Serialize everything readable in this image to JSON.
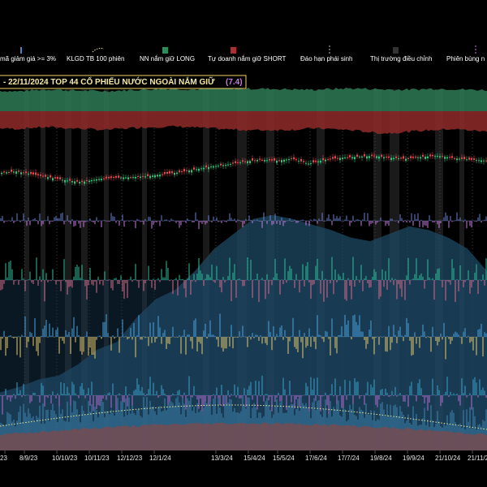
{
  "chart_data": {
    "type": "composite",
    "title": "- 22/11/2024  TOP 44  CỔ PHIẾU NƯỚC NGOÀI NẮM GIỮ",
    "title_value": "(7.4)",
    "legend": [
      {
        "label": "mã giảm giá >= 3%",
        "color": "#6fa8ff",
        "marker": "tick"
      },
      {
        "label": "KLGD TB 100 phiên",
        "color": "#e8e49a",
        "marker": "dotted"
      },
      {
        "label": "NN nắm giữ LONG",
        "color": "#2f8a5c",
        "marker": "box"
      },
      {
        "label": "Tự doanh nắm giữ SHORT",
        "color": "#a83232",
        "marker": "box"
      },
      {
        "label": "Đáo hạn phái sinh",
        "color": "#bbbbbb",
        "marker": "dashed"
      },
      {
        "label": "Thị trường điều chỉnh",
        "color": "#333333",
        "marker": "box"
      },
      {
        "label": "Phiên bùng n",
        "color": "#c77ddf",
        "marker": "dashed"
      }
    ],
    "x_ticks": [
      "23",
      "8/9/23",
      "10/10/23",
      "10/11/23",
      "12/12/23",
      "12/1/24",
      "13/3/24",
      "15/4/24",
      "15/5/24",
      "17/6/24",
      "17/7/24",
      "19/8/24",
      "19/9/24",
      "21/10/24",
      "21/11/2"
    ],
    "x_tick_pos": [
      0,
      24,
      64,
      104,
      144,
      184,
      260,
      300,
      336,
      376,
      416,
      456,
      496,
      536,
      576
    ],
    "correction_zones": [
      [
        30,
        36
      ],
      [
        50,
        56
      ],
      [
        80,
        88
      ],
      [
        100,
        108
      ],
      [
        128,
        134
      ],
      [
        175,
        181
      ],
      [
        250,
        258
      ],
      [
        292,
        304
      ],
      [
        328,
        338
      ],
      [
        390,
        400
      ],
      [
        460,
        470
      ],
      [
        480,
        492
      ],
      [
        536,
        546
      ],
      [
        566,
        572
      ]
    ],
    "series": [
      {
        "name": "NN nắm giữ LONG",
        "values": [
          60,
          58,
          62,
          64,
          61,
          60,
          59,
          61,
          63,
          65,
          66,
          64,
          65,
          67,
          66,
          66,
          65,
          64,
          63,
          65,
          67,
          66,
          64,
          63,
          64,
          66,
          65,
          63,
          62
        ]
      },
      {
        "name": "Tự doanh nắm giữ SHORT",
        "values": [
          -50,
          -52,
          -48,
          -47,
          -50,
          -52,
          -55,
          -51,
          -48,
          -46,
          -45,
          -47,
          -50,
          -53,
          -55,
          -56,
          -55,
          -54,
          -50,
          -52,
          -55,
          -60,
          -65,
          -62,
          -58,
          -55,
          -52,
          -56,
          -60
        ]
      },
      {
        "name": "price",
        "values": [
          45,
          48,
          42,
          36,
          30,
          26,
          32,
          35,
          36,
          38,
          42,
          46,
          52,
          58,
          62,
          68,
          72,
          70,
          74,
          64,
          72,
          76,
          78,
          80,
          76,
          74,
          78,
          80,
          75,
          72,
          70
        ]
      },
      {
        "name": "breadth",
        "values": [
          5,
          8,
          12,
          14,
          20,
          28,
          32,
          45,
          55,
          60,
          70,
          82,
          90,
          98,
          100,
          98,
          95,
          92,
          88,
          86,
          90,
          94,
          92,
          88,
          82,
          70
        ]
      }
    ]
  }
}
